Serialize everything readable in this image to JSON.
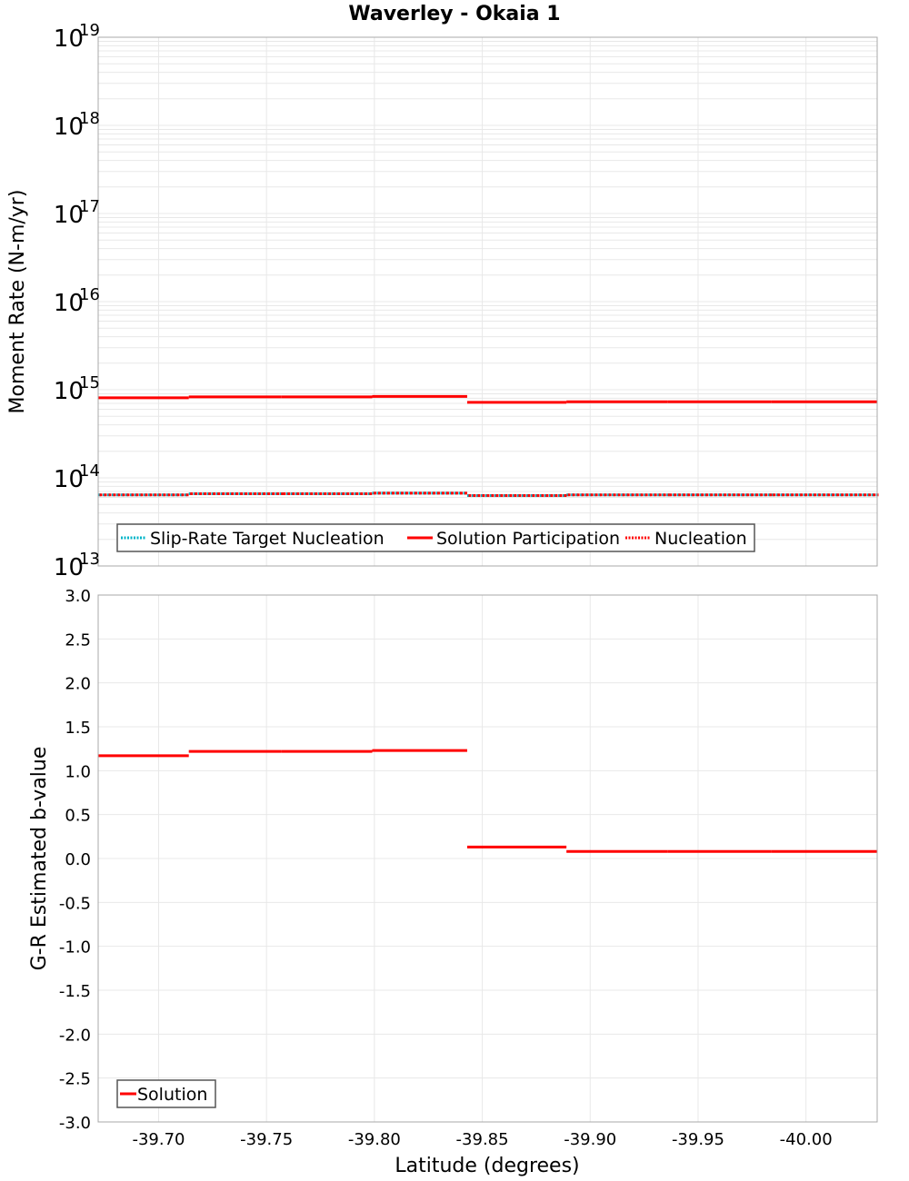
{
  "title": "Waverley - Okaia 1",
  "colors": {
    "solution": "#ff0000",
    "nucleation": "#ff0000",
    "target": "#00b4c8",
    "grid": "#e8e8e8",
    "frame": "#a8a8a8"
  },
  "chart_data": [
    {
      "type": "line",
      "subtype": "step",
      "title": "Waverley - Okaia 1",
      "xlabel": "Latitude (degrees)",
      "ylabel": "Moment Rate (N-m/yr)",
      "yscale": "log",
      "ylim": [
        10000000000000.0,
        1e+19
      ],
      "xlim": [
        -39.672,
        -40.033
      ],
      "x_reversed": true,
      "ytick_exponents": [
        13,
        14,
        15,
        16,
        17,
        18,
        19
      ],
      "grid": true,
      "legend_position": "lower-left",
      "bin_edges": [
        -39.672,
        -39.714,
        -39.757,
        -39.799,
        -39.843,
        -39.889,
        -39.936,
        -39.984,
        -40.033
      ],
      "series": [
        {
          "name": "Slip-Rate Target Nucleation",
          "style": "dotted",
          "color": "#00b4c8",
          "values": [
            64000000000000.0,
            66000000000000.0,
            66000000000000.0,
            67000000000000.0,
            63000000000000.0,
            64000000000000.0,
            64000000000000.0,
            64000000000000.0
          ]
        },
        {
          "name": "Solution Participation",
          "style": "solid",
          "color": "#ff0000",
          "values": [
            810000000000000.0,
            830000000000000.0,
            830000000000000.0,
            840000000000000.0,
            720000000000000.0,
            730000000000000.0,
            730000000000000.0,
            730000000000000.0
          ]
        },
        {
          "name": "Nucleation",
          "style": "dotted",
          "color": "#ff0000",
          "values": [
            64000000000000.0,
            66000000000000.0,
            66000000000000.0,
            67000000000000.0,
            63000000000000.0,
            64000000000000.0,
            64000000000000.0,
            64000000000000.0
          ]
        }
      ]
    },
    {
      "type": "line",
      "subtype": "step",
      "xlabel": "Latitude (degrees)",
      "ylabel": "G-R Estimated b-value",
      "ylim": [
        -3.0,
        3.0
      ],
      "xlim": [
        -39.672,
        -40.033
      ],
      "x_reversed": true,
      "yticks": [
        "3.0",
        "2.5",
        "2.0",
        "1.5",
        "1.0",
        "0.5",
        "0.0",
        "-0.5",
        "-1.0",
        "-1.5",
        "-2.0",
        "-2.5",
        "-3.0"
      ],
      "xticks": [
        "-39.70",
        "-39.75",
        "-39.80",
        "-39.85",
        "-39.90",
        "-39.95",
        "-40.00"
      ],
      "grid": true,
      "legend_position": "lower-left",
      "bin_edges": [
        -39.672,
        -39.714,
        -39.757,
        -39.799,
        -39.843,
        -39.889,
        -39.936,
        -39.984,
        -40.033
      ],
      "series": [
        {
          "name": "Solution",
          "style": "solid",
          "color": "#ff0000",
          "values": [
            1.17,
            1.22,
            1.22,
            1.23,
            0.13,
            0.08,
            0.08,
            0.08
          ]
        }
      ]
    }
  ]
}
